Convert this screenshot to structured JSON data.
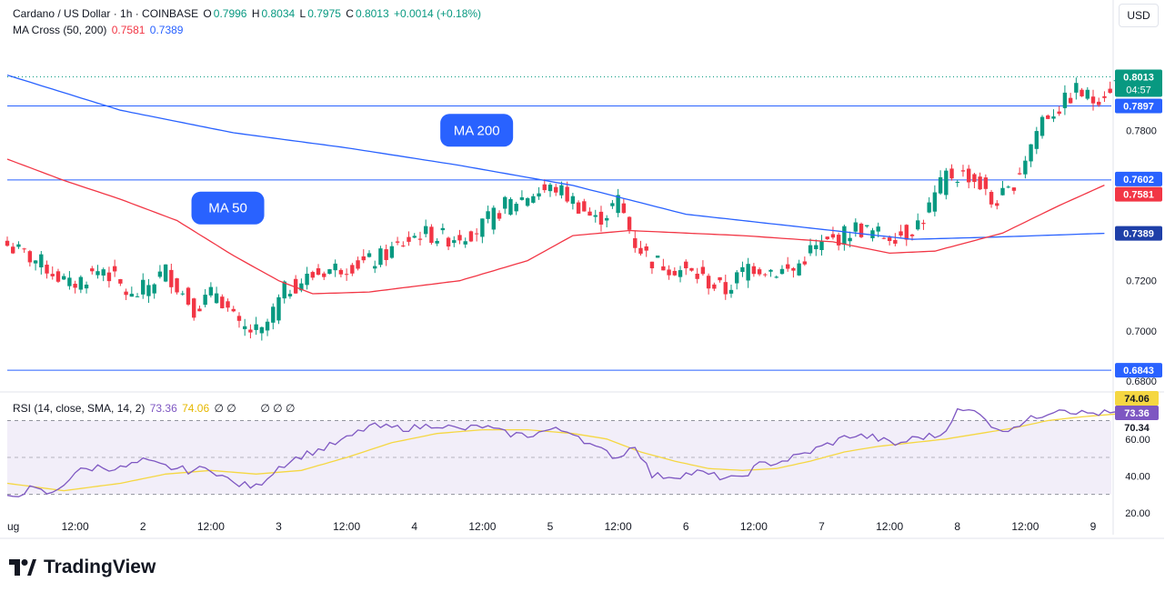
{
  "header": {
    "symbol": "Cardano / US Dollar · 1h · COINBASE",
    "o_label": "O",
    "o_value": "0.7996",
    "h_label": "H",
    "h_value": "0.8034",
    "l_label": "L",
    "l_value": "0.7975",
    "c_label": "C",
    "c_value": "0.8013",
    "change": "+0.0014 (+0.18%)",
    "ma_label": "MA Cross (50, 200)",
    "ma50_value": "0.7581",
    "ma200_value": "0.7389"
  },
  "rsi_header": {
    "label": "RSI (14, close, SMA, 14, 2)",
    "rsi_value": "73.36",
    "sma_value": "74.06",
    "placeholders": "∅ ∅        ∅ ∅ ∅"
  },
  "currency": "USD",
  "brand": "TradingView",
  "colors": {
    "up": "#089981",
    "down": "#f23645",
    "ma50": "#f23645",
    "ma200": "#2962ff",
    "rsi": "#7e57c2",
    "rsi_sma": "#f5d742",
    "hline": "#2962ff",
    "rsi_band": "#ede7f6"
  },
  "chart_data": [
    {
      "type": "candlestick",
      "title": "Cardano / US Dollar · 1h · COINBASE",
      "ylim": [
        0.676,
        0.816
      ],
      "y_ticks": [
        "0.7800",
        "0.7200",
        "0.7000",
        "0.6800"
      ],
      "y_tick_values": [
        0.78,
        0.72,
        0.7,
        0.68
      ],
      "x_ticks": [
        "ug",
        "12:00",
        "2",
        "12:00",
        "3",
        "12:00",
        "4",
        "12:00",
        "5",
        "12:00",
        "6",
        "12:00",
        "7",
        "12:00",
        "8",
        "12:00",
        "9"
      ],
      "x_tick_hours": [
        0,
        12,
        24,
        36,
        48,
        60,
        72,
        84,
        96,
        108,
        120,
        132,
        144,
        156,
        168,
        180,
        192
      ],
      "horizontal_lines": [
        0.7897,
        0.7602,
        0.6843
      ],
      "price_labels": [
        {
          "text": "0.8013",
          "value": 0.8013,
          "color": "#089981",
          "sub": "04:57"
        },
        {
          "text": "0.7897",
          "value": 0.7897,
          "color": "#2962ff"
        },
        {
          "text": "0.7602",
          "value": 0.7602,
          "color": "#2962ff"
        },
        {
          "text": "0.7581",
          "value": 0.7581,
          "color": "#f23645"
        },
        {
          "text": "0.7389",
          "value": 0.7389,
          "color": "#1e3fa8"
        },
        {
          "text": "0.6843",
          "value": 0.6843,
          "color": "#2962ff"
        }
      ],
      "callouts": [
        {
          "text": "MA 200",
          "hour": 83,
          "value": 0.78
        },
        {
          "text": "MA 50",
          "hour": 39,
          "value": 0.749
        }
      ],
      "close_anchors": [
        [
          0,
          0.734
        ],
        [
          6,
          0.727
        ],
        [
          11,
          0.718
        ],
        [
          17,
          0.725
        ],
        [
          22,
          0.713
        ],
        [
          28,
          0.724
        ],
        [
          33,
          0.709
        ],
        [
          37,
          0.716
        ],
        [
          41,
          0.701
        ],
        [
          45,
          0.699
        ],
        [
          49,
          0.716
        ],
        [
          53,
          0.721
        ],
        [
          56,
          0.724
        ],
        [
          60,
          0.726
        ],
        [
          65,
          0.728
        ],
        [
          70,
          0.735
        ],
        [
          73,
          0.739
        ],
        [
          78,
          0.737
        ],
        [
          83,
          0.74
        ],
        [
          88,
          0.75
        ],
        [
          93,
          0.755
        ],
        [
          97,
          0.757
        ],
        [
          100,
          0.752
        ],
        [
          104,
          0.744
        ],
        [
          106,
          0.747
        ],
        [
          108,
          0.752
        ],
        [
          111,
          0.735
        ],
        [
          114,
          0.728
        ],
        [
          118,
          0.725
        ],
        [
          122,
          0.722
        ],
        [
          125,
          0.718
        ],
        [
          127,
          0.716
        ],
        [
          131,
          0.726
        ],
        [
          136,
          0.724
        ],
        [
          139,
          0.724
        ],
        [
          142,
          0.732
        ],
        [
          145,
          0.735
        ],
        [
          150,
          0.741
        ],
        [
          155,
          0.738
        ],
        [
          159,
          0.739
        ],
        [
          162,
          0.745
        ],
        [
          166,
          0.762
        ],
        [
          170,
          0.762
        ],
        [
          172,
          0.758
        ],
        [
          174,
          0.751
        ],
        [
          177,
          0.755
        ],
        [
          179,
          0.764
        ],
        [
          183,
          0.785
        ],
        [
          186,
          0.789
        ],
        [
          189,
          0.796
        ],
        [
          192,
          0.792
        ],
        [
          196,
          0.799
        ],
        [
          198,
          0.8013
        ]
      ],
      "ma50_anchors": [
        [
          0,
          0.7685
        ],
        [
          10,
          0.76
        ],
        [
          20,
          0.7525
        ],
        [
          30,
          0.744
        ],
        [
          40,
          0.73
        ],
        [
          48,
          0.72
        ],
        [
          54,
          0.7148
        ],
        [
          64,
          0.7155
        ],
        [
          80,
          0.72
        ],
        [
          92,
          0.728
        ],
        [
          100,
          0.738
        ],
        [
          110,
          0.74
        ],
        [
          120,
          0.739
        ],
        [
          130,
          0.738
        ],
        [
          146,
          0.7355
        ],
        [
          156,
          0.731
        ],
        [
          164,
          0.7318
        ],
        [
          176,
          0.739
        ],
        [
          186,
          0.75
        ],
        [
          194,
          0.7581
        ]
      ],
      "ma200_anchors": [
        [
          0,
          0.802
        ],
        [
          20,
          0.788
        ],
        [
          40,
          0.779
        ],
        [
          60,
          0.773
        ],
        [
          80,
          0.766
        ],
        [
          100,
          0.758
        ],
        [
          120,
          0.7465
        ],
        [
          140,
          0.7415
        ],
        [
          160,
          0.7365
        ],
        [
          176,
          0.7375
        ],
        [
          194,
          0.7389
        ]
      ]
    },
    {
      "type": "line",
      "title": "RSI (14, close, SMA, 14, 2)",
      "ylim": [
        19,
        85
      ],
      "y_ticks": [
        "60.00",
        "40.00",
        "20.00"
      ],
      "y_tick_values": [
        60,
        40,
        20
      ],
      "band": [
        30,
        70
      ],
      "mid": 50,
      "series": [
        {
          "name": "RSI",
          "color": "#7e57c2",
          "anchors": [
            [
              0,
              28
            ],
            [
              4,
              33
            ],
            [
              8,
              30
            ],
            [
              12,
              42
            ],
            [
              16,
              45
            ],
            [
              20,
              44
            ],
            [
              24,
              48
            ],
            [
              28,
              45
            ],
            [
              32,
              43
            ],
            [
              36,
              44
            ],
            [
              40,
              36
            ],
            [
              44,
              34
            ],
            [
              48,
              45
            ],
            [
              52,
              51
            ],
            [
              56,
              55
            ],
            [
              60,
              60
            ],
            [
              64,
              67
            ],
            [
              68,
              66
            ],
            [
              72,
              66
            ],
            [
              76,
              68
            ],
            [
              80,
              65
            ],
            [
              84,
              67
            ],
            [
              88,
              63
            ],
            [
              92,
              62
            ],
            [
              96,
              65
            ],
            [
              100,
              64
            ],
            [
              104,
              55
            ],
            [
              108,
              50
            ],
            [
              111,
              57
            ],
            [
              114,
              40
            ],
            [
              118,
              40
            ],
            [
              122,
              42
            ],
            [
              125,
              40
            ],
            [
              129,
              38
            ],
            [
              133,
              46
            ],
            [
              137,
              48
            ],
            [
              141,
              52
            ],
            [
              145,
              57
            ],
            [
              149,
              62
            ],
            [
              153,
              61
            ],
            [
              157,
              57
            ],
            [
              161,
              61
            ],
            [
              165,
              62
            ],
            [
              168,
              75
            ],
            [
              172,
              75
            ],
            [
              175,
              64
            ],
            [
              178,
              67
            ],
            [
              182,
              72
            ],
            [
              186,
              77
            ],
            [
              190,
              74
            ],
            [
              194,
              74
            ],
            [
              198,
              73.36
            ]
          ]
        },
        {
          "name": "SMA",
          "color": "#f5d742",
          "anchors": [
            [
              0,
              36
            ],
            [
              10,
              32
            ],
            [
              20,
              36
            ],
            [
              28,
              41
            ],
            [
              36,
              43
            ],
            [
              44,
              41
            ],
            [
              52,
              43
            ],
            [
              60,
              50
            ],
            [
              68,
              58
            ],
            [
              76,
              63
            ],
            [
              84,
              65
            ],
            [
              92,
              65
            ],
            [
              100,
              63
            ],
            [
              106,
              60
            ],
            [
              112,
              53
            ],
            [
              118,
              48
            ],
            [
              124,
              44
            ],
            [
              130,
              43
            ],
            [
              136,
              44
            ],
            [
              142,
              48
            ],
            [
              148,
              53
            ],
            [
              154,
              56
            ],
            [
              160,
              58
            ],
            [
              166,
              60
            ],
            [
              172,
              63
            ],
            [
              178,
              66
            ],
            [
              184,
              70
            ],
            [
              190,
              72
            ],
            [
              198,
              74.06
            ]
          ]
        }
      ],
      "price_labels": [
        {
          "text": "74.06",
          "value": 74.06,
          "color": "#f5d742",
          "text_color": "#131722"
        },
        {
          "text": "73.36",
          "value": 73.36,
          "color": "#7e57c2",
          "text_color": "#ffffff"
        },
        {
          "text": "70.34",
          "value": 70.34,
          "color": "transparent",
          "text_color": "#131722"
        }
      ]
    }
  ]
}
